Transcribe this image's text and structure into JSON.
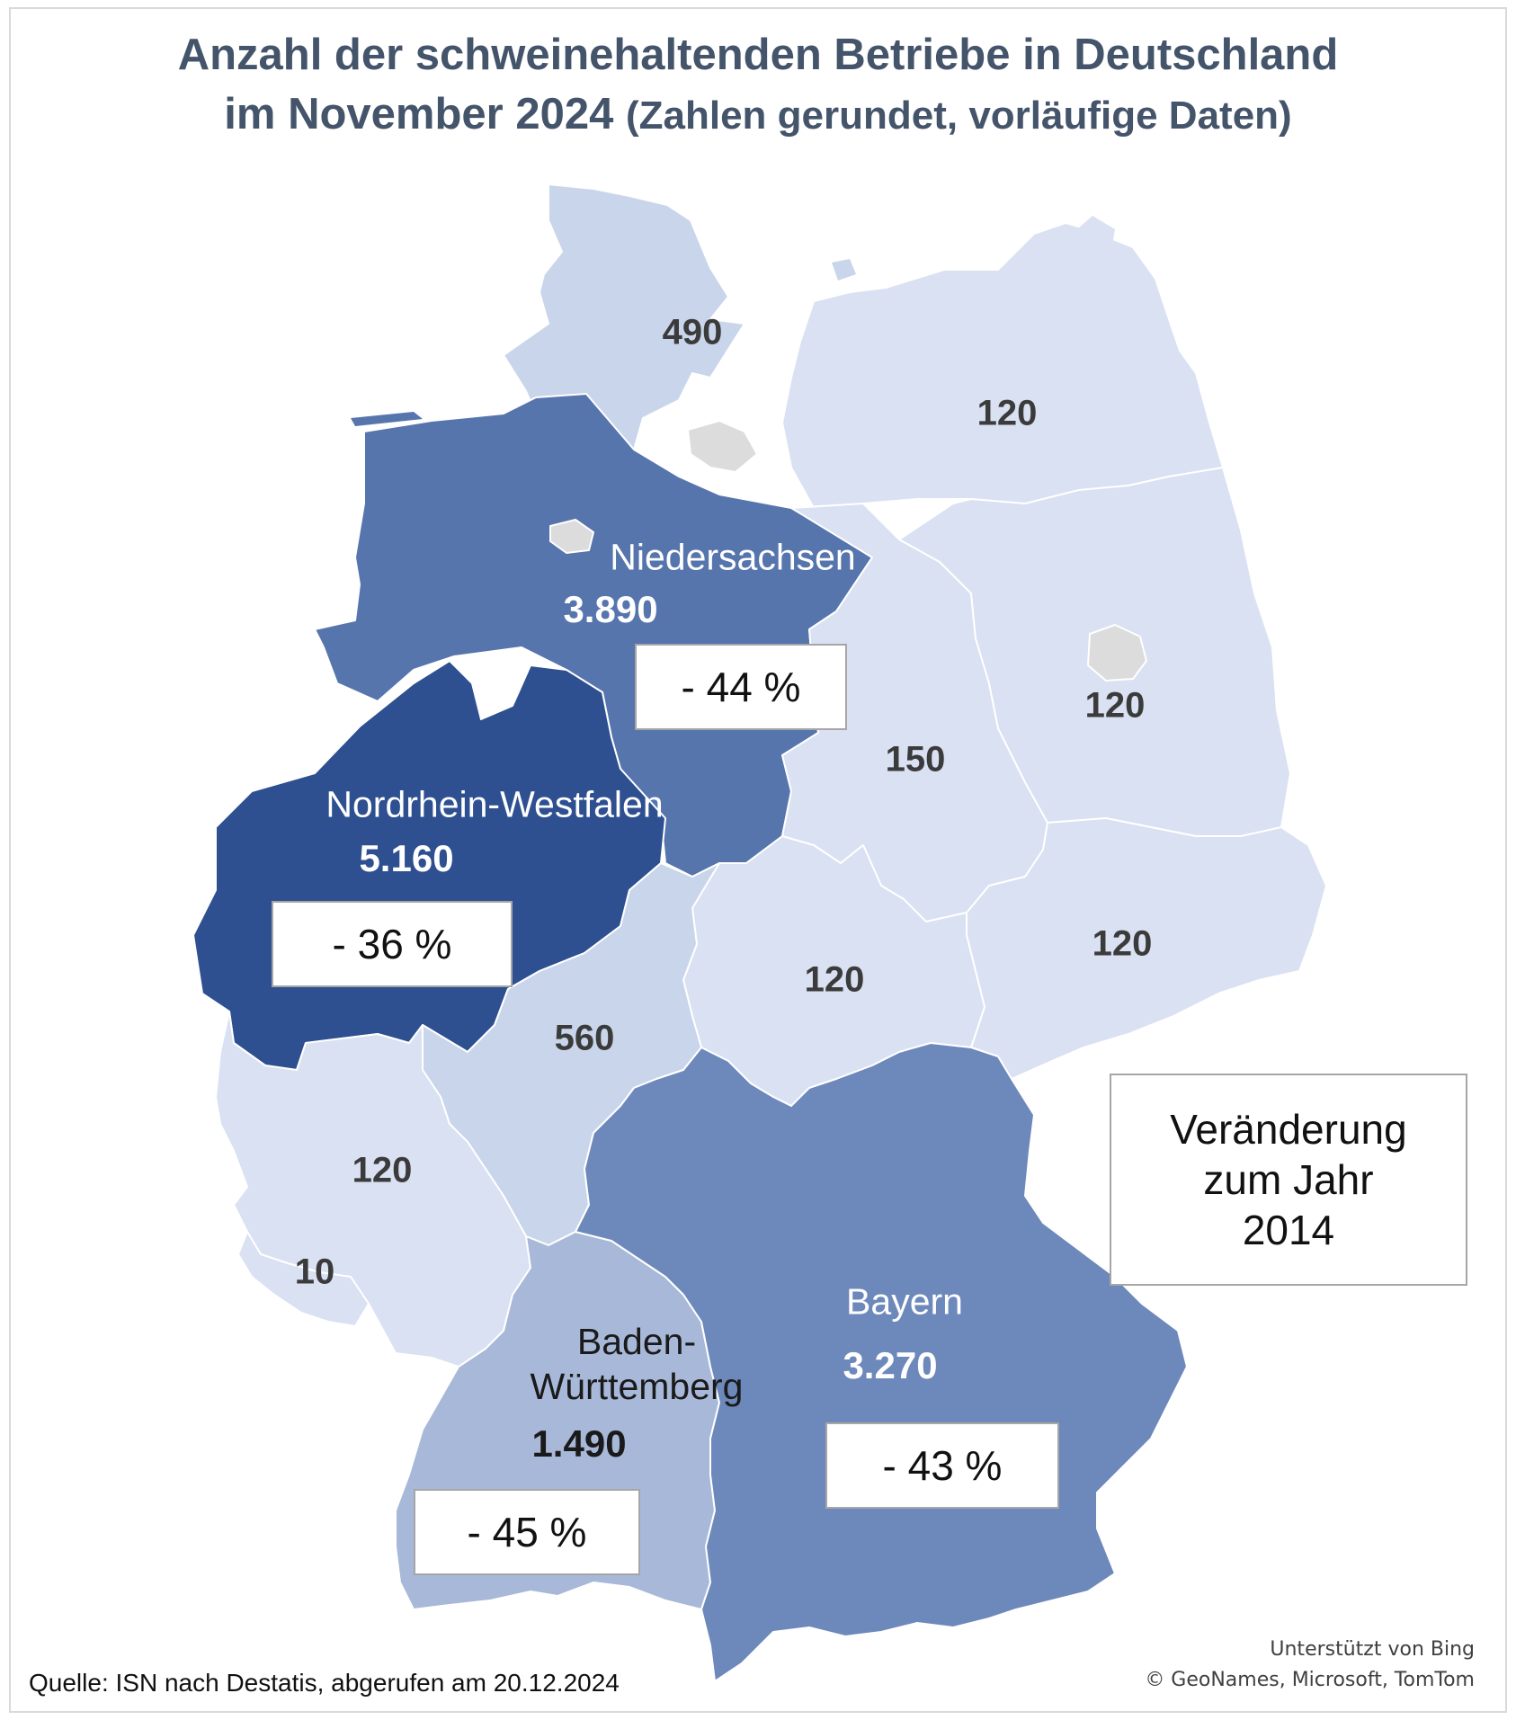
{
  "title": {
    "line1": "Anzahl der schweinehaltenden Betriebe in Deutschland",
    "line2_main": "im November 2024",
    "line2_sub": "(Zahlen gerundet, vorläufige Daten)"
  },
  "colors": {
    "lightest": "#d9e1f2",
    "light": "#c9d5ea",
    "medium_light": "#a8b8d9",
    "medium": "#6d88bb",
    "medium_dark": "#5775ad",
    "dark": "#2e5090",
    "city_states": "#dcdcdc",
    "title": "#44546a"
  },
  "regions": {
    "schleswig_holstein": {
      "value": "490"
    },
    "mecklenburg_vorpommern": {
      "value": "120"
    },
    "brandenburg": {
      "value": "120"
    },
    "sachsen_anhalt": {
      "value": "150"
    },
    "sachsen": {
      "value": "120"
    },
    "thueringen": {
      "value": "120"
    },
    "hessen": {
      "value": "560"
    },
    "rheinland_pfalz": {
      "value": "120"
    },
    "saarland": {
      "value": "10"
    },
    "niedersachsen": {
      "name": "Niedersachsen",
      "value": "3.890",
      "change": "- 44 %"
    },
    "nordrhein_westfalen": {
      "name": "Nordrhein-Westfalen",
      "value": "5.160",
      "change": "- 36 %"
    },
    "bayern": {
      "name": "Bayern",
      "value": "3.270",
      "change": "- 43 %"
    },
    "baden_wuerttemberg": {
      "name": "Baden-\nWürttemberg",
      "value": "1.490",
      "change": "- 45 %"
    }
  },
  "legend": {
    "text": "Veränderung\nzum Jahr\n2014"
  },
  "source": "Quelle: ISN nach Destatis, abgerufen am 20.12.2024",
  "attribution": {
    "line1": "Unterstützt von Bing",
    "line2": "© GeoNames, Microsoft, TomTom"
  }
}
